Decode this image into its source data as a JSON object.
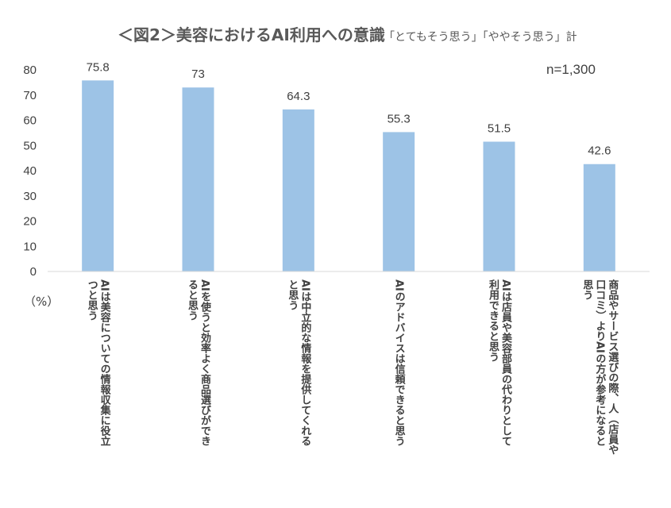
{
  "chart_data": {
    "type": "bar",
    "title": "＜図2＞美容におけるAI利用への意識",
    "subtitle": "「とてもそう思う」「ややそう思う」計",
    "sample_note": "n=1,300",
    "y_unit": "（%）",
    "ylim": [
      0,
      80
    ],
    "y_ticks": [
      "0",
      "10",
      "20",
      "30",
      "40",
      "50",
      "60",
      "70",
      "80"
    ],
    "grid": false,
    "bar_color": "#9DC3E6",
    "categories": [
      [
        "AIは美容についての情報収集に役立",
        "つと思う"
      ],
      [
        "AIを使うと効率よく商品選びができ",
        "ると思う"
      ],
      [
        "AIは中立的な情報を提供してくれる",
        "と思う"
      ],
      [
        "AIのアドバイスは信頼できると思う"
      ],
      [
        "AIは店員や美容部員の代わりとして",
        "利用できると思う"
      ],
      [
        "商品やサービス選びの際、人（店員や",
        "口コミ）よりAIの方が参考になると",
        "思う"
      ]
    ],
    "values": [
      75.8,
      73,
      64.3,
      55.3,
      51.5,
      42.6
    ],
    "value_labels": [
      "75.8",
      "73",
      "64.3",
      "55.3",
      "51.5",
      "42.6"
    ]
  }
}
